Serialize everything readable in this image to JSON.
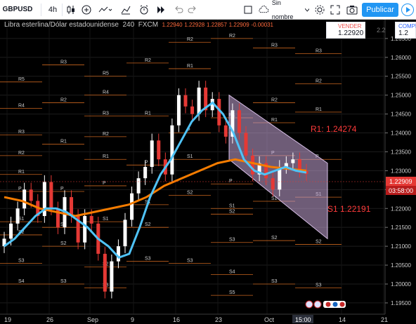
{
  "toolbar": {
    "symbol": "GBPUSD",
    "interval": "4h",
    "template_label": "Sin nombre",
    "publish_label": "Publicar"
  },
  "legend": {
    "title": "Libra esterlina/Dólar estadounidense",
    "interval": "240",
    "exchange": "FXCM",
    "values": [
      "1.22940",
      "1.22928",
      "1.22857",
      "1.22909",
      "-0.00031"
    ]
  },
  "trade": {
    "sell_label": "VENDER",
    "sell_price": "1.22920",
    "buy_label": "COMPR",
    "buy_price": "1.2",
    "spread": "2.2"
  },
  "annotations": {
    "r1": "R1: 1.24274",
    "s1": "S1  1.22191"
  },
  "price_scale": {
    "ticks": [
      "1.26500",
      "1.26000",
      "1.25500",
      "1.25000",
      "1.24500",
      "1.24000",
      "1.23500",
      "1.23000",
      "1.22500",
      "1.22000",
      "1.21500",
      "1.21000",
      "1.20500",
      "1.20000",
      "1.19500"
    ],
    "current_price": "1.22909",
    "countdown": "03:58:00"
  },
  "time_scale": {
    "ticks": [
      "19",
      "26",
      "Sep",
      "9",
      "16",
      "23",
      "Oct",
      "14",
      "21"
    ],
    "cursor_time": "15:00"
  },
  "pivot_labels": {
    "r1": "R1",
    "r2": "R2",
    "r3": "R3",
    "r4": "R4",
    "r5": "R5",
    "p": "P",
    "s1": "S1",
    "s2": "S2",
    "s3": "S3",
    "s4": "S4",
    "s5": "S5"
  },
  "colors": {
    "background": "#000000",
    "up_candle": "#ffffff",
    "down_candle": "#e53935",
    "ma_fast": "#4fc3f7",
    "ma_slow": "#f57c00",
    "pivot_line": "#c8641e",
    "channel_fill": "#c8a8d8",
    "annotation": "#ff3b3b",
    "publish_button": "#2196f3"
  },
  "chart_data": {
    "type": "candlestick",
    "symbol": "GBPUSD",
    "timeframe": "240",
    "ylim": [
      1.1935,
      1.2685
    ],
    "x": [
      "19",
      "26",
      "Sep",
      "9",
      "16",
      "23",
      "Oct",
      "14",
      "21"
    ],
    "close_series": [
      1.212,
      1.216,
      1.22,
      1.225,
      1.222,
      1.218,
      1.227,
      1.22,
      1.215,
      1.223,
      1.218,
      1.211,
      1.218,
      1.216,
      1.208,
      1.198,
      1.206,
      1.21,
      1.217,
      1.224,
      1.228,
      1.231,
      1.238,
      1.233,
      1.229,
      1.242,
      1.25,
      1.247,
      1.245,
      1.252,
      1.246,
      1.249,
      1.242,
      1.239,
      1.246,
      1.24,
      1.234,
      1.229,
      1.232,
      1.228,
      1.225,
      1.231,
      1.232,
      1.233,
      1.23,
      1.2291
    ],
    "ma_fast": [
      1.21,
      1.212,
      1.215,
      1.218,
      1.22,
      1.22,
      1.219,
      1.217,
      1.215,
      1.212,
      1.21,
      1.207,
      1.208,
      1.215,
      1.223,
      1.229,
      1.233,
      1.238,
      1.243,
      1.246,
      1.248,
      1.245,
      1.24,
      1.233,
      1.23,
      1.229,
      1.23,
      1.231,
      1.23,
      1.2295
    ],
    "ma_slow": [
      1.223,
      1.222,
      1.22,
      1.219,
      1.218,
      1.219,
      1.22,
      1.221,
      1.223,
      1.226,
      1.228,
      1.23,
      1.232,
      1.233,
      1.232,
      1.231,
      1.2305,
      1.23
    ],
    "channel": {
      "upper_start": 1.25,
      "upper_end": 1.232,
      "lower_start": 1.233,
      "lower_end": 1.212
    },
    "annotations": [
      {
        "text": "R1: 1.24274",
        "value": 1.24274
      },
      {
        "text": "S1  1.22191",
        "value": 1.22191
      }
    ]
  }
}
